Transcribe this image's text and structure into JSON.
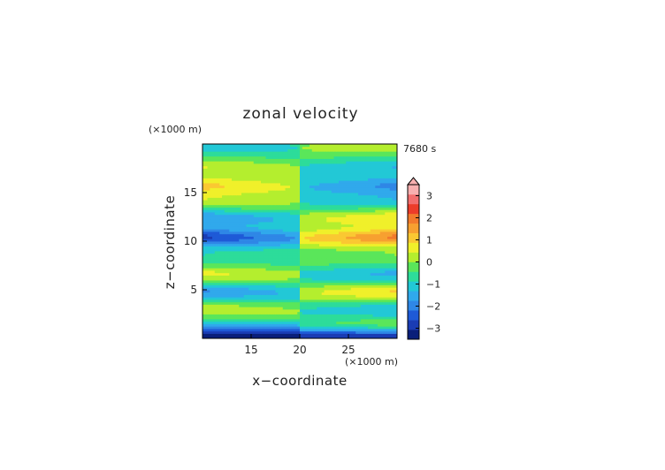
{
  "chart_data": {
    "type": "heatmap",
    "title": "zonal velocity",
    "xlabel": "x−coordinate",
    "ylabel": "z−coordinate",
    "x_unit": "(×1000 m)",
    "y_unit": "(×1000 m)",
    "time_label": "7680 s",
    "xlim": [
      10,
      30
    ],
    "ylim": [
      0,
      20
    ],
    "x_ticks": [
      15,
      20,
      25
    ],
    "y_ticks": [
      5,
      10,
      15
    ],
    "x_tick_labels": [
      "15",
      "20",
      "25"
    ],
    "y_tick_labels": [
      "5",
      "10",
      "15"
    ],
    "colorbar": {
      "range": [
        -3.5,
        3.5
      ],
      "step": 0.5,
      "tick_values": [
        3,
        2,
        1,
        0,
        -1,
        -2,
        -3
      ],
      "tick_labels": [
        "3",
        "2",
        "1",
        "0",
        "−1",
        "−2",
        "−3"
      ],
      "colors": [
        "#0a1f7a",
        "#1a3cb4",
        "#1e5ad7",
        "#2f87e6",
        "#30a9ec",
        "#22c8d6",
        "#2ddc9a",
        "#5ae65a",
        "#b4ee2e",
        "#f0f02a",
        "#fac832",
        "#f7a030",
        "#f27a2c",
        "#ec3c2a",
        "#f26e6e",
        "#f8b0b0"
      ],
      "extend_max": true
    },
    "bands": [
      {
        "z": 0.2,
        "amp": -3.0,
        "mirror": false
      },
      {
        "z": 1.1,
        "amp": -0.8,
        "mirror": true
      },
      {
        "z": 2.8,
        "amp": 1.0,
        "mirror": true
      },
      {
        "z": 4.7,
        "amp": -1.6,
        "mirror": true
      },
      {
        "z": 6.5,
        "amp": 1.2,
        "mirror": true
      },
      {
        "z": 8.2,
        "amp": -0.5,
        "mirror": true
      },
      {
        "z": 10.3,
        "amp": -2.6,
        "mirror": true
      },
      {
        "z": 12.3,
        "amp": -1.5,
        "mirror": true
      },
      {
        "z": 14.0,
        "amp": 0.9,
        "mirror": true
      },
      {
        "z": 15.6,
        "amp": 1.6,
        "mirror": true
      },
      {
        "z": 17.5,
        "amp": 1.0,
        "mirror": true
      },
      {
        "z": 19.6,
        "amp": -0.9,
        "mirror": true
      }
    ]
  }
}
